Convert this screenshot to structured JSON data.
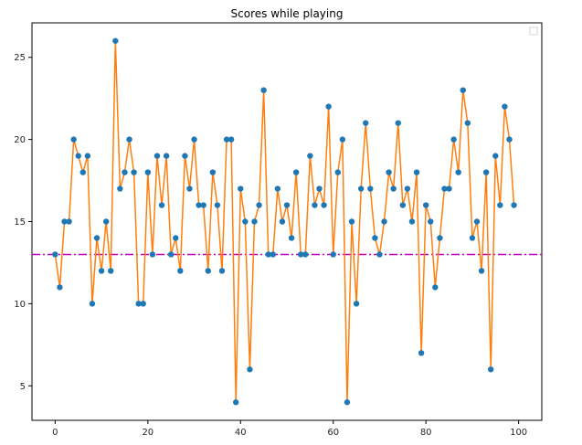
{
  "chart_data": {
    "type": "line",
    "title": "Scores while playing",
    "xlabel": "",
    "ylabel": "",
    "xlim": [
      -5,
      105
    ],
    "ylim": [
      2.9,
      27.1
    ],
    "xticks": [
      0,
      20,
      40,
      60,
      80,
      100
    ],
    "yticks": [
      5,
      10,
      15,
      20,
      25
    ],
    "grid": false,
    "legend": "top-right",
    "colors": {
      "line": "#ff7f0e",
      "marker": "#1f77b4",
      "reference": "#bf00bf"
    },
    "reference_line": {
      "y": 13,
      "style": "dash-dot"
    },
    "series": [
      {
        "x": [
          0,
          1,
          2,
          3,
          4,
          5,
          6,
          7,
          8,
          9,
          10,
          11,
          12,
          13,
          14,
          15,
          16,
          17,
          18,
          19,
          20,
          21,
          22,
          23,
          24,
          25,
          26,
          27,
          28,
          29,
          30,
          31,
          32,
          33,
          34,
          35,
          36,
          37,
          38,
          39,
          40,
          41,
          42,
          43,
          44,
          45,
          46,
          47,
          48,
          49,
          50,
          51,
          52,
          53,
          54,
          55,
          56,
          57,
          58,
          59,
          60,
          61,
          62,
          63,
          64,
          65,
          66,
          67,
          68,
          69,
          70,
          71,
          72,
          73,
          74,
          75,
          76,
          77,
          78,
          79,
          80,
          81,
          82,
          83,
          84,
          85,
          86,
          87,
          88,
          89,
          90,
          91,
          92,
          93,
          94,
          95,
          96,
          97,
          98,
          99
        ],
        "values": [
          13,
          11,
          15,
          15,
          20,
          19,
          18,
          19,
          10,
          14,
          12,
          15,
          12,
          26,
          17,
          18,
          20,
          18,
          10,
          10,
          18,
          13,
          19,
          16,
          19,
          13,
          14,
          12,
          19,
          17,
          20,
          16,
          16,
          12,
          18,
          16,
          12,
          20,
          20,
          4,
          17,
          15,
          6,
          15,
          16,
          23,
          13,
          13,
          17,
          15,
          16,
          14,
          18,
          13,
          13,
          19,
          16,
          17,
          16,
          22,
          13,
          18,
          20,
          4,
          15,
          10,
          17,
          21,
          17,
          14,
          13,
          15,
          18,
          17,
          21,
          16,
          17,
          15,
          18,
          7,
          16,
          15,
          11,
          14,
          17,
          17,
          20,
          18,
          23,
          21,
          14,
          15,
          12,
          18,
          6,
          19,
          16,
          22,
          20,
          16
        ]
      }
    ]
  }
}
